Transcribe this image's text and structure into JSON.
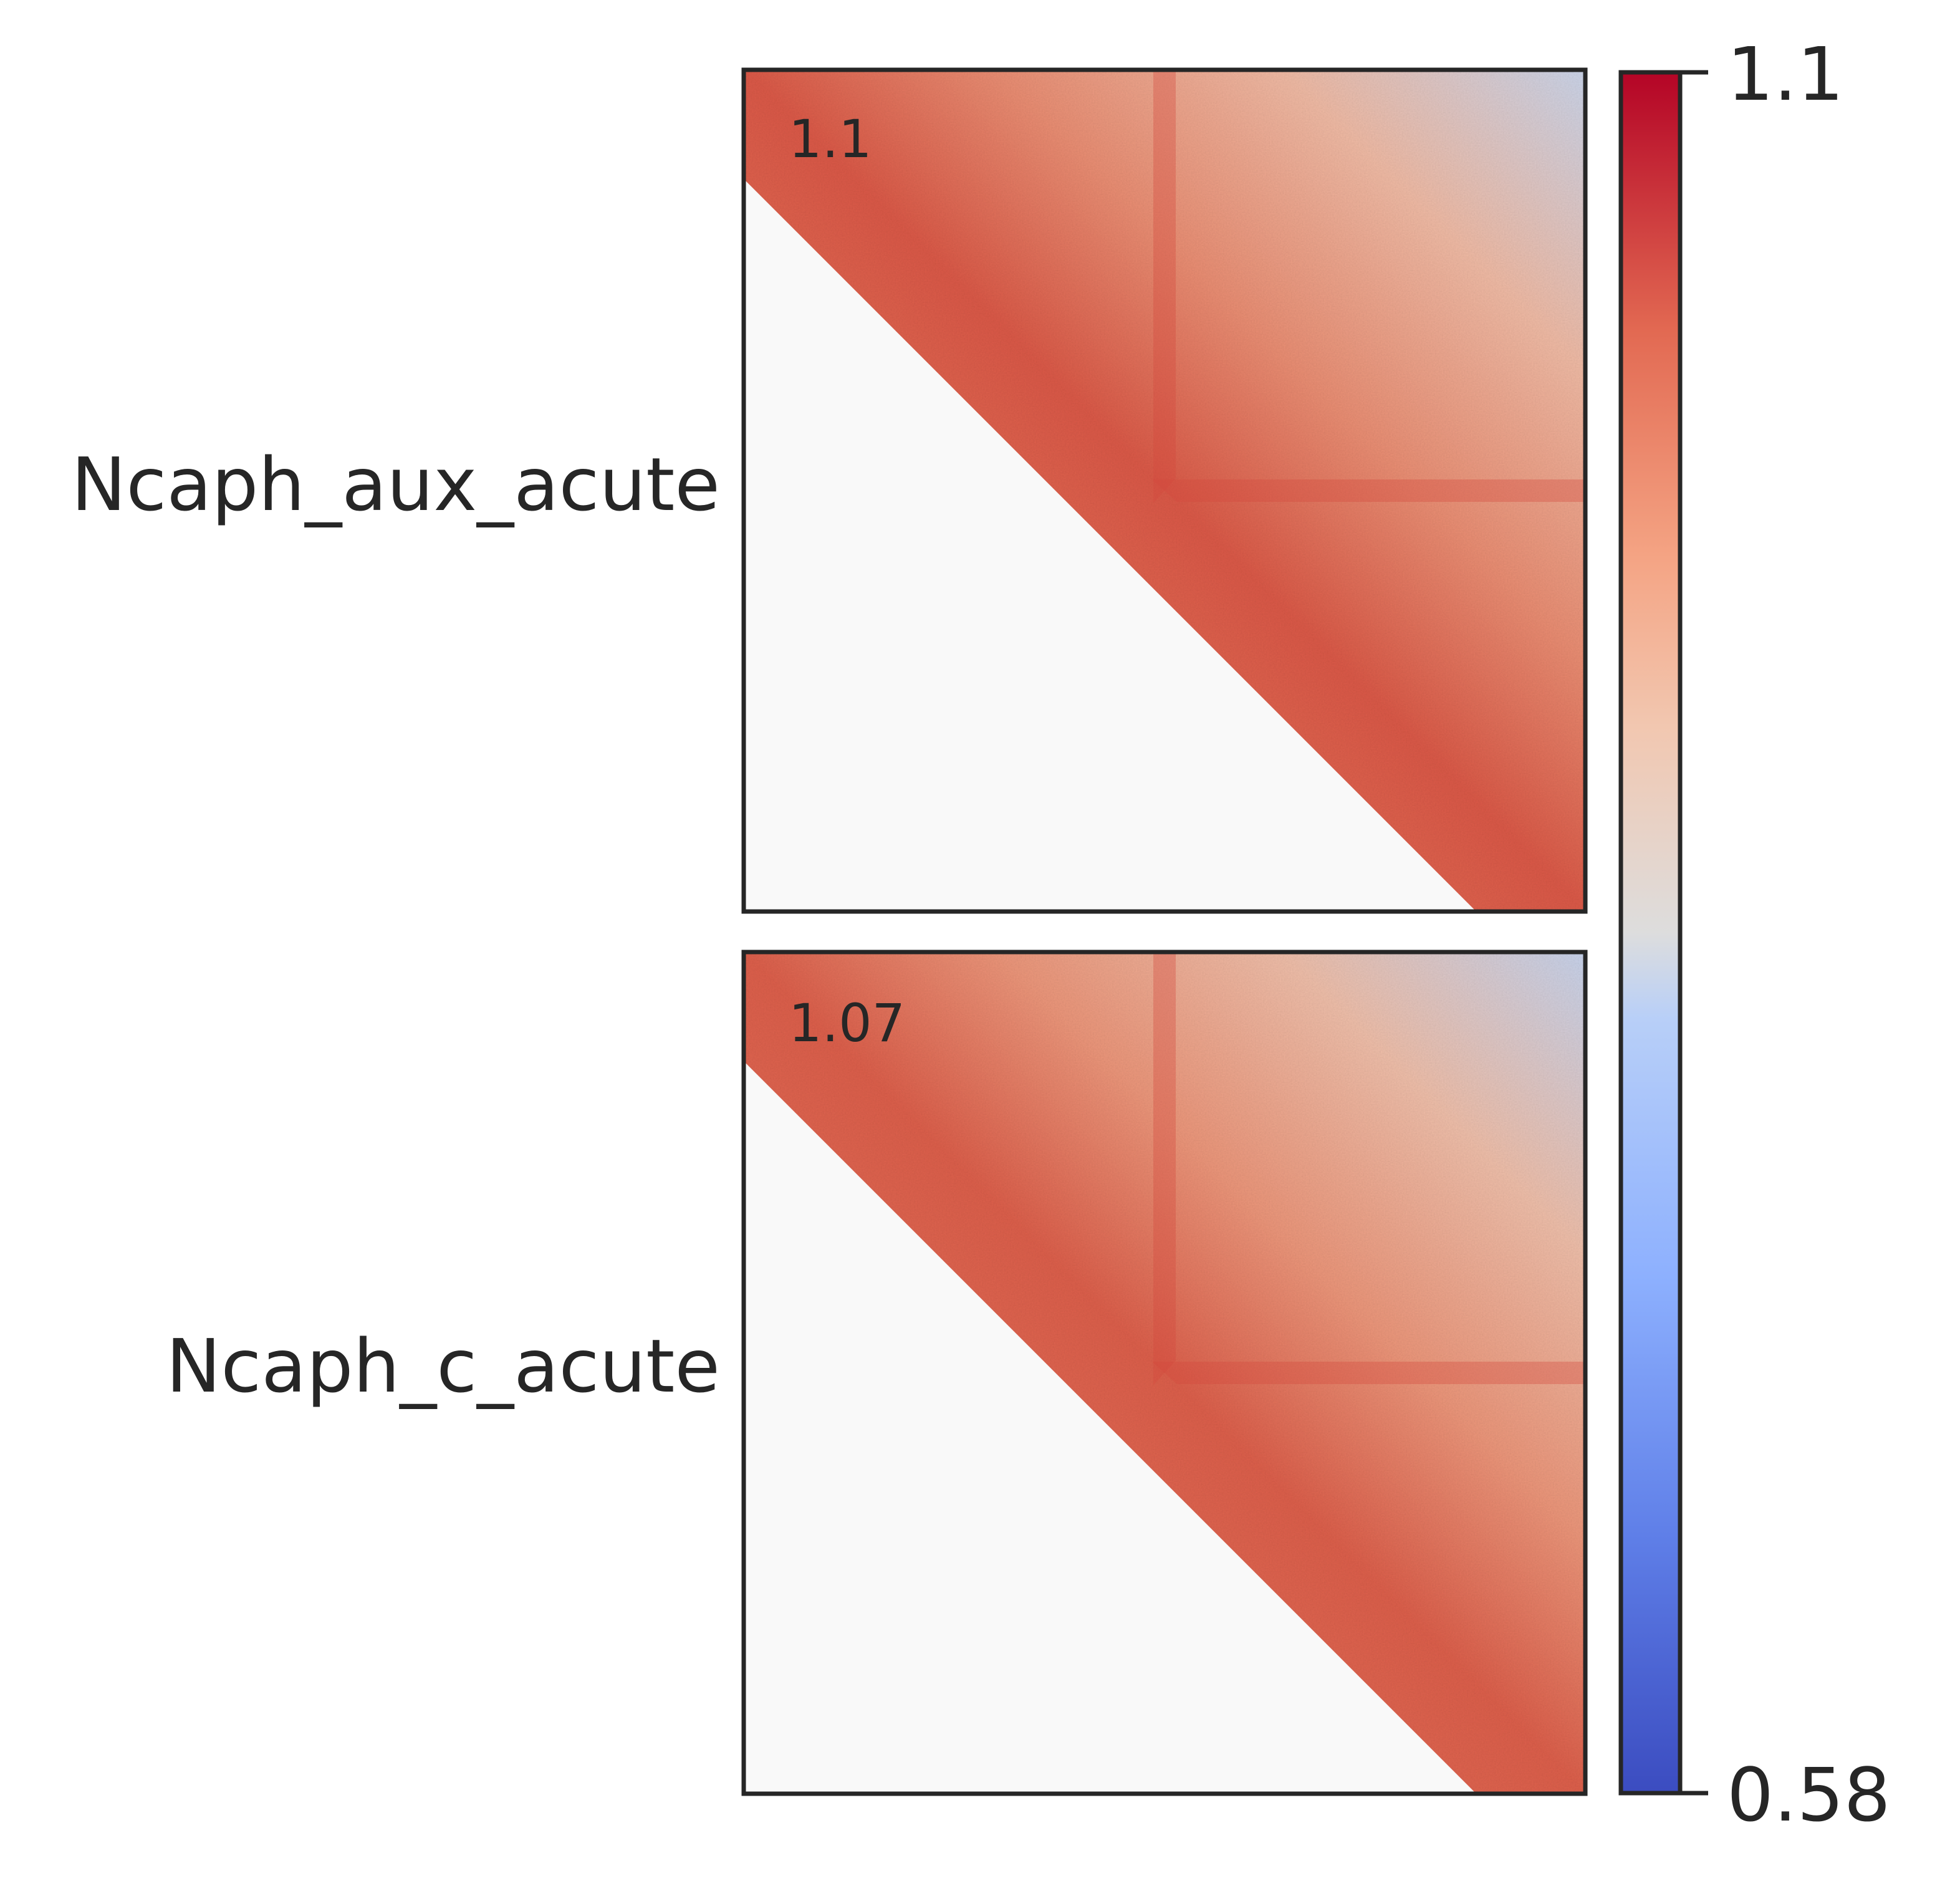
{
  "chart_data": {
    "type": "heatmap",
    "panels": [
      {
        "row_label": "Ncaph_aux_acute",
        "corner_value": "1.1"
      },
      {
        "row_label": "Ncaph_c_acute",
        "corner_value": "1.07"
      }
    ],
    "colorbar": {
      "colormap": "coolwarm",
      "min": 0.58,
      "max": 1.1,
      "tick_labels": [
        "1.1",
        "0.58"
      ]
    },
    "lower_triangle_masked": true,
    "mask_color": "#f9f9f9",
    "frame_color": "#262626",
    "grid": false
  }
}
